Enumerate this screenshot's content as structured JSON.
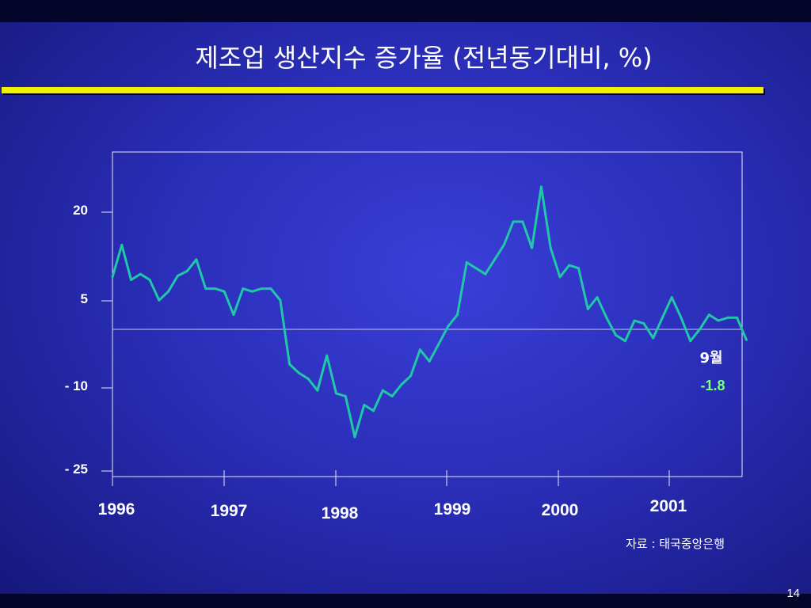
{
  "slide": {
    "title": "제조업 생산지수 증가율 (전년동기대비, %)",
    "source": "자료 : 태국중앙은행",
    "page_number": "14"
  },
  "colors": {
    "background": "#2a2eb8",
    "line": "#20c8a8",
    "rule": "#f2f000",
    "reference_line": "#c8c8e8",
    "annotation_value": "#7dff8a",
    "text": "#ffffff"
  },
  "chart_data": {
    "type": "line",
    "title": "",
    "xlabel": "",
    "ylabel": "",
    "ylim": [
      -25,
      30
    ],
    "yticks": [
      20,
      5,
      -10,
      -25
    ],
    "ytick_labels": [
      "20",
      "5",
      "- 10",
      "- 25"
    ],
    "reference_line_y": 0,
    "grid": false,
    "legend": false,
    "year_labels": [
      "1996",
      "1997",
      "1998",
      "1999",
      "2000",
      "2001"
    ],
    "start": "1996-01",
    "series": [
      {
        "frequency": "monthly",
        "values": [
          9,
          14.5,
          8.5,
          9.5,
          8.5,
          5,
          6.5,
          9.2,
          10,
          12,
          7,
          7,
          6.5,
          2.5,
          7,
          6.5,
          7,
          7,
          5,
          -6,
          -7.5,
          -8.5,
          -10.5,
          -4.5,
          -11,
          -11.5,
          -18.5,
          -13,
          -14,
          -10.5,
          -11.5,
          -9.5,
          -8,
          -3.5,
          -5.5,
          -2.5,
          0.5,
          2.5,
          11.5,
          10.5,
          9.5,
          12,
          14.5,
          18.5,
          18.5,
          14,
          24.5,
          14,
          9,
          11,
          10.5,
          3.5,
          5.5,
          2,
          -1,
          -2,
          1.5,
          1,
          -1.5,
          2,
          5.5,
          2,
          -2,
          0,
          2.5,
          1.5,
          2,
          2,
          -1.8
        ]
      }
    ],
    "annotation": {
      "label": "9월",
      "value": "-1.8"
    }
  }
}
